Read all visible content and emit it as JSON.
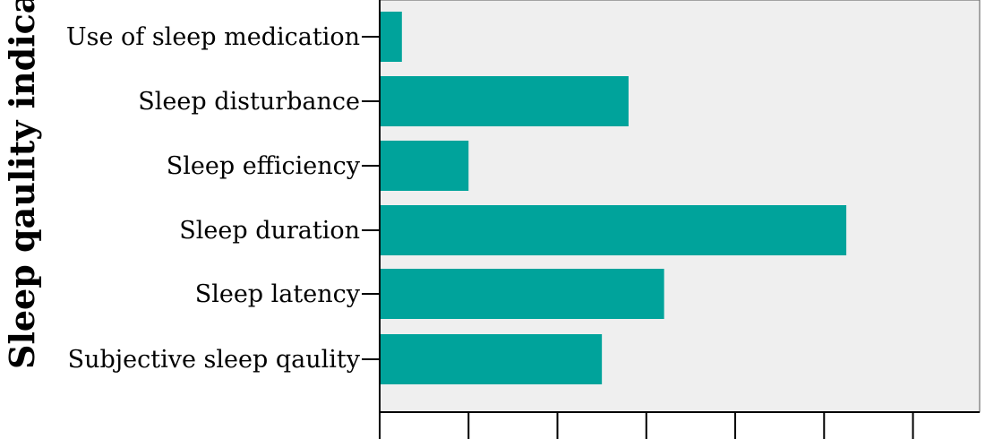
{
  "chart_data": {
    "type": "bar",
    "orientation": "horizontal",
    "ylabel": "Sleep qaulity indicato",
    "xlabel": "",
    "categories": [
      "Use of sleep medication",
      "Sleep disturbance",
      "Sleep efficiency",
      "Sleep duration",
      "Sleep latency",
      "Subjective sleep qaulity"
    ],
    "values": [
      2.5,
      28,
      10,
      52.5,
      32,
      25
    ],
    "xlim": [
      0,
      67.5
    ],
    "x_tick_step": 10,
    "bar_color": "#00a39b",
    "plot_background": "#efefef",
    "grid": false,
    "legend": "none"
  }
}
